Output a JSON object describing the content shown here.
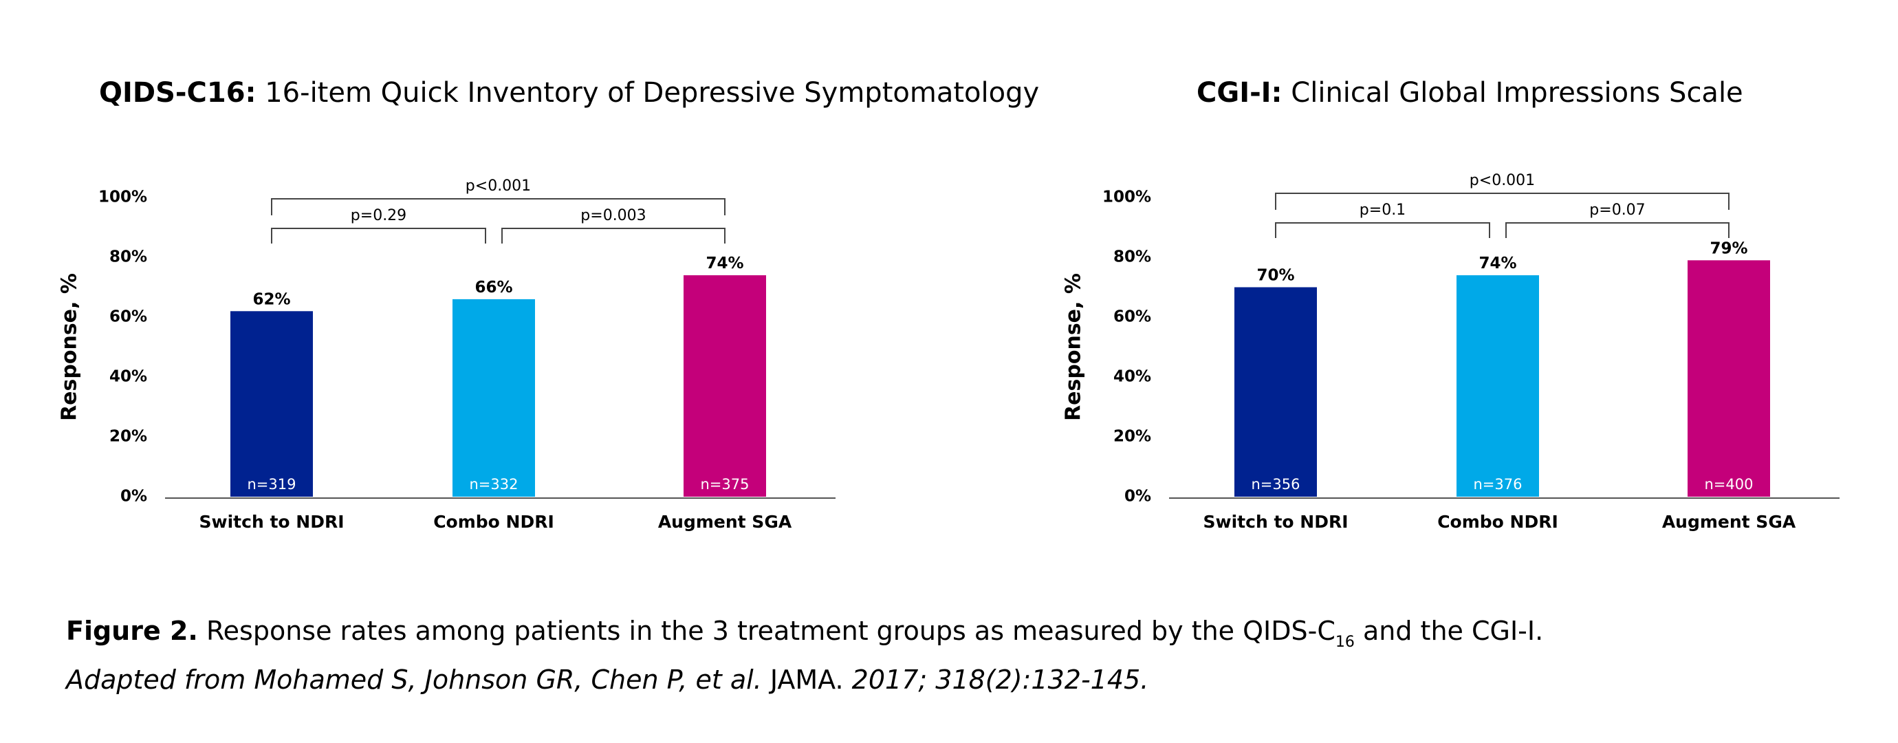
{
  "chart_data": [
    {
      "type": "bar",
      "title_bold": "QIDS-C16:",
      "title_rest": "16-item Quick Inventory of Depressive Symptomatology",
      "ylabel": "Response, %",
      "ylim": [
        0,
        100
      ],
      "yticks": [
        "0%",
        "20%",
        "40%",
        "60%",
        "80%",
        "100%"
      ],
      "categories": [
        "Switch to NDRI",
        "Combo NDRI",
        "Augment SGA"
      ],
      "values": [
        62,
        66,
        74
      ],
      "value_labels": [
        "62%",
        "66%",
        "74%"
      ],
      "n_labels": [
        "n=319",
        "n=332",
        "n=375"
      ],
      "colors": [
        "#002290",
        "#00A9E8",
        "#C4007A"
      ],
      "comparisons": [
        {
          "from": 0,
          "to": 1,
          "label": "p=0.29"
        },
        {
          "from": 1,
          "to": 2,
          "label": "p=0.003"
        },
        {
          "from": 0,
          "to": 2,
          "label": "p<0.001"
        }
      ]
    },
    {
      "type": "bar",
      "title_bold": "CGI-I:",
      "title_rest": "Clinical Global Impressions Scale",
      "ylabel": "Response, %",
      "ylim": [
        0,
        100
      ],
      "yticks": [
        "0%",
        "20%",
        "40%",
        "60%",
        "80%",
        "100%"
      ],
      "categories": [
        "Switch to NDRI",
        "Combo NDRI",
        "Augment SGA"
      ],
      "values": [
        70,
        74,
        79
      ],
      "value_labels": [
        "70%",
        "74%",
        "79%"
      ],
      "n_labels": [
        "n=356",
        "n=376",
        "n=400"
      ],
      "colors": [
        "#002290",
        "#00A9E8",
        "#C4007A"
      ],
      "comparisons": [
        {
          "from": 0,
          "to": 1,
          "label": "p=0.1"
        },
        {
          "from": 1,
          "to": 2,
          "label": "p=0.07"
        },
        {
          "from": 0,
          "to": 2,
          "label": "p<0.001"
        }
      ]
    }
  ],
  "caption": {
    "figure_label": "Figure 2.",
    "text_before": "Response rates among patients in the 3 treatment groups as measured by the QIDS-C",
    "subscript": "16",
    "text_after": "and the CGI-I.",
    "citation_italic": "Adapted from Mohamed S, Johnson GR, Chen P, et al.",
    "journal": "JAMA.",
    "citation_tail": "2017; 318(2):132-145."
  }
}
